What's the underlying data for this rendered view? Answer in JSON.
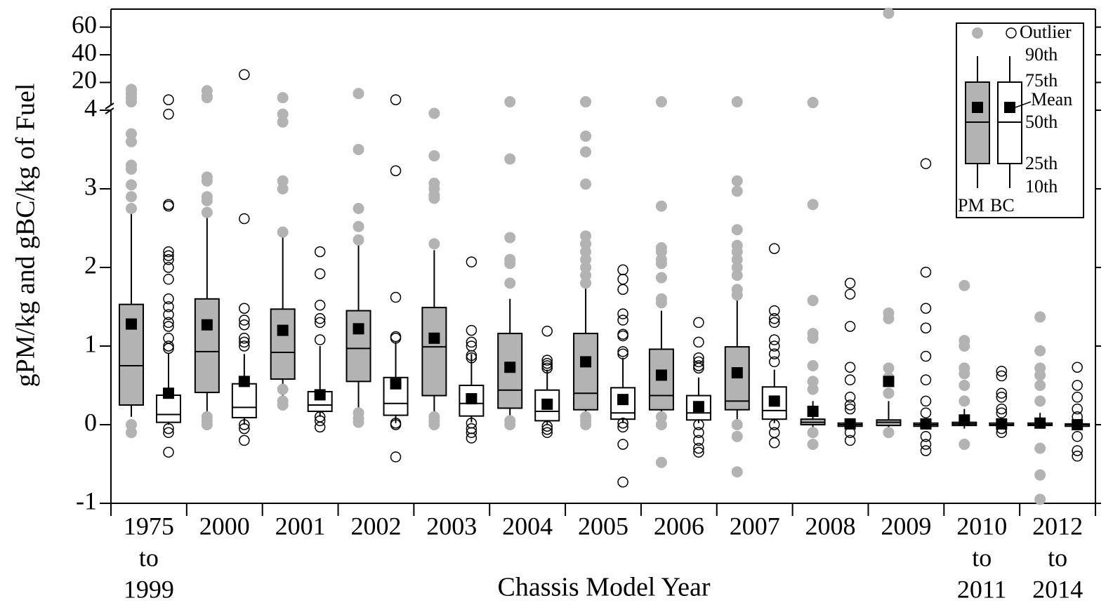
{
  "chart_data": {
    "type": "box",
    "y_label": "gPM/kg and gBC/kg of Fuel",
    "x_label": "Chassis Model Year",
    "categories": [
      [
        "1975",
        "to",
        "1999"
      ],
      [
        "2000"
      ],
      [
        "2001"
      ],
      [
        "2002"
      ],
      [
        "2003"
      ],
      [
        "2004"
      ],
      [
        "2005"
      ],
      [
        "2006"
      ],
      [
        "2007"
      ],
      [
        "2008"
      ],
      [
        "2009"
      ],
      [
        "2010",
        "to",
        "2011"
      ],
      [
        "2012",
        "to",
        "2014"
      ]
    ],
    "ylim": [
      -1,
      4
    ],
    "yticks": [
      -1,
      0,
      1,
      2,
      3,
      4
    ],
    "ylim_upper": [
      4,
      73
    ],
    "yticks_upper": [
      20,
      40,
      60
    ],
    "series": [
      {
        "name": "PM",
        "color": "#b3b3b3",
        "p10": [
          0.1,
          0.05,
          0.35,
          0.2,
          0.15,
          0.1,
          0.05,
          0.05,
          0.05,
          -0.03,
          -0.05,
          -0.05,
          -0.05
        ],
        "p25": [
          0.25,
          0.41,
          0.58,
          0.55,
          0.37,
          0.21,
          0.19,
          0.19,
          0.19,
          0.0,
          -0.01,
          -0.01,
          -0.01
        ],
        "median": [
          0.75,
          0.93,
          0.92,
          0.97,
          0.99,
          0.44,
          0.4,
          0.37,
          0.3,
          0.03,
          0.03,
          0.01,
          0.0
        ],
        "p75": [
          1.53,
          1.6,
          1.47,
          1.45,
          1.49,
          1.16,
          1.16,
          0.96,
          0.99,
          0.07,
          0.06,
          0.03,
          0.02
        ],
        "p90": [
          2.68,
          2.63,
          2.38,
          2.3,
          2.22,
          1.6,
          1.75,
          1.45,
          1.58,
          0.3,
          0.3,
          0.2,
          0.15
        ],
        "mean": [
          1.28,
          1.27,
          1.2,
          1.22,
          1.1,
          0.73,
          0.8,
          0.63,
          0.66,
          0.17,
          0.55,
          0.06,
          0.02
        ],
        "outliers": [
          [
            15,
            12,
            9,
            6,
            3.7,
            3.6,
            3.3,
            3.25,
            3.05,
            2.9,
            2.75,
            0,
            -0.1
          ],
          [
            14,
            10,
            9,
            3.15,
            3.1,
            2.9,
            2.85,
            2.7,
            0.1,
            0.05,
            0
          ],
          [
            9,
            3.95,
            3.85,
            3.1,
            3.0,
            2.45,
            0.45,
            0.3,
            0.25
          ],
          [
            12,
            3.5,
            2.75,
            2.52,
            2.35,
            0.15,
            0.08,
            0.03
          ],
          [
            3.96,
            3.42,
            3.07,
            3.0,
            2.92,
            2.88,
            2.3,
            0.1,
            0.05,
            0
          ],
          [
            6,
            3.38,
            2.38,
            2.1,
            2.05,
            1.8,
            0.05,
            0
          ],
          [
            6,
            3.67,
            3.47,
            3.06,
            2.4,
            2.3,
            2.2,
            2.1,
            2.0,
            1.9,
            1.8,
            0.1,
            0.05,
            0
          ],
          [
            6,
            2.78,
            2.25,
            2.2,
            2.1,
            2.05,
            1.87,
            1.6,
            1.55,
            0.1,
            0,
            -0.48
          ],
          [
            6,
            3.1,
            2.97,
            2.48,
            2.28,
            2.2,
            2.1,
            2.0,
            1.9,
            1.72,
            1.65,
            0,
            -0.15,
            -0.6
          ],
          [
            5.5,
            2.8,
            1.58,
            1.16,
            1.1,
            0.75,
            0.55,
            0.45,
            -0.1,
            -0.25
          ],
          [
            70,
            1.42,
            1.35,
            0.72,
            0.6,
            0.4,
            -0.1
          ],
          [
            1.77,
            1.07,
            1.0,
            0.72,
            0.65,
            0.5,
            0.3,
            -0.25
          ],
          [
            1.37,
            0.94,
            0.72,
            0.63,
            0.5,
            0.3,
            -0.3,
            -0.64,
            -0.95
          ]
        ]
      },
      {
        "name": "BC",
        "color": "#ffffff",
        "p10": [
          0.0,
          0.0,
          0.1,
          0.02,
          0.03,
          0.0,
          0.02,
          0.02,
          0.02,
          -0.05,
          -0.05,
          -0.03,
          -0.05
        ],
        "p25": [
          0.03,
          0.09,
          0.17,
          0.12,
          0.11,
          0.05,
          0.07,
          0.06,
          0.07,
          -0.02,
          -0.02,
          -0.01,
          -0.02
        ],
        "median": [
          0.13,
          0.22,
          0.25,
          0.27,
          0.27,
          0.17,
          0.15,
          0.15,
          0.18,
          0.0,
          0.0,
          0.0,
          0.0
        ],
        "p75": [
          0.375,
          0.52,
          0.42,
          0.6,
          0.5,
          0.44,
          0.47,
          0.37,
          0.48,
          0.02,
          0.02,
          0.02,
          0.01
        ],
        "p90": [
          0.9,
          0.9,
          1.0,
          1.05,
          0.9,
          0.7,
          0.85,
          0.6,
          0.7,
          0.05,
          0.05,
          0.05,
          0.05
        ],
        "mean": [
          0.4,
          0.55,
          0.38,
          0.52,
          0.33,
          0.26,
          0.32,
          0.23,
          0.3,
          0.01,
          0.01,
          0.01,
          0.0
        ],
        "outliers": [
          [
            7.5,
            3.95,
            2.8,
            2.78,
            2.2,
            2.15,
            2.1,
            2.0,
            1.85,
            1.6,
            1.5,
            1.4,
            1.3,
            1.25,
            1.1,
            1.0,
            0.97,
            -0.05,
            -0.1,
            -0.35
          ],
          [
            25.7,
            2.62,
            1.48,
            1.33,
            1.27,
            1.1,
            1.05,
            1.0,
            0,
            -0.05,
            -0.2
          ],
          [
            2.2,
            1.92,
            1.52,
            1.35,
            1.3,
            1.08,
            0.1,
            0.05,
            -0.03
          ],
          [
            7.5,
            3.23,
            1.62,
            1.12,
            1.1,
            0.02,
            0,
            -0.41
          ],
          [
            2.07,
            1.2,
            1.05,
            1.0,
            0.88,
            0.85,
            0.02,
            -0.05,
            -0.1,
            -0.17
          ],
          [
            1.19,
            0.82,
            0.78,
            0.75,
            0.72,
            -0.02,
            -0.06,
            -0.1
          ],
          [
            1.97,
            1.85,
            1.72,
            1.41,
            1.33,
            1.15,
            1.13,
            0.93,
            0.9,
            0.02,
            -0.03,
            -0.25,
            -0.73
          ],
          [
            1.3,
            1.05,
            0.85,
            0.8,
            0.75,
            0.72,
            0,
            -0.1,
            -0.2,
            -0.3,
            -0.35
          ],
          [
            2.24,
            1.45,
            1.35,
            1.3,
            1.08,
            1.0,
            0.9,
            0.8,
            0.0,
            -0.1,
            -0.23
          ],
          [
            1.8,
            1.66,
            1.25,
            0.73,
            0.57,
            0.35,
            0.25,
            0.2,
            -0.1,
            -0.2
          ],
          [
            3.32,
            1.94,
            1.48,
            1.23,
            0.87,
            0.57,
            0.3,
            0.15,
            -0.15,
            -0.25,
            -0.33
          ],
          [
            0.68,
            0.62,
            0.4,
            0.35,
            0.2,
            0.15,
            -0.05,
            -0.1
          ],
          [
            0.73,
            0.5,
            0.35,
            0.2,
            0.1,
            -0.15,
            -0.33,
            -0.4
          ]
        ]
      }
    ],
    "legend": {
      "outlier": "Outlier",
      "p90": "90th",
      "p75": "75th",
      "mean": "Mean",
      "median": "50th",
      "p25": "25th",
      "p10": "10th"
    }
  }
}
